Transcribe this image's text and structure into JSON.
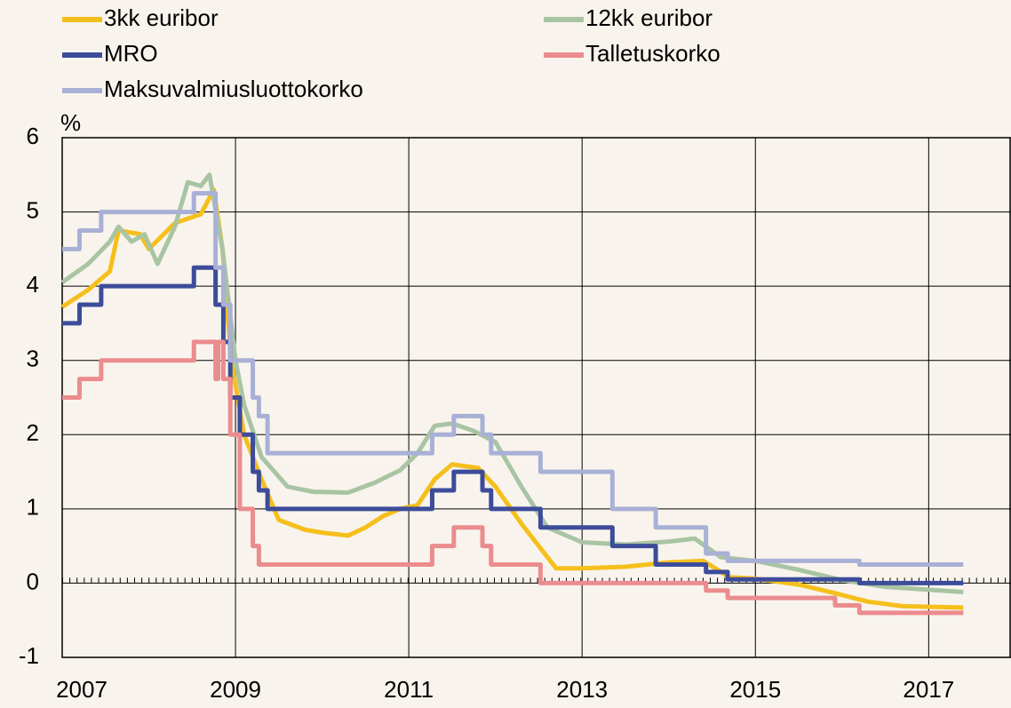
{
  "chart_data": {
    "type": "line",
    "y_label": "%",
    "xlim": [
      2007,
      2017.95
    ],
    "xticks": [
      2007,
      2009,
      2011,
      2013,
      2015,
      2017
    ],
    "ylim": [
      -1,
      6
    ],
    "yticks": [
      -1,
      0,
      1,
      2,
      3,
      4,
      5,
      6
    ],
    "grid": true,
    "series": [
      {
        "name": "3kk euribor",
        "color": "#f5bf1c",
        "step": false,
        "x": [
          2007.0,
          2007.3,
          2007.55,
          2007.65,
          2007.9,
          2008.0,
          2008.3,
          2008.6,
          2008.75,
          2008.85,
          2008.95,
          2009.1,
          2009.3,
          2009.5,
          2009.8,
          2010.0,
          2010.3,
          2010.5,
          2010.7,
          2010.9,
          2011.1,
          2011.3,
          2011.5,
          2011.8,
          2012.0,
          2012.3,
          2012.5,
          2012.7,
          2013.0,
          2013.5,
          2014.0,
          2014.4,
          2014.7,
          2015.0,
          2015.5,
          2015.9,
          2016.3,
          2016.7,
          2017.4
        ],
        "values": [
          3.72,
          3.95,
          4.2,
          4.75,
          4.7,
          4.5,
          4.85,
          4.97,
          5.3,
          4.5,
          3.0,
          2.0,
          1.4,
          0.85,
          0.72,
          0.68,
          0.64,
          0.75,
          0.9,
          1.0,
          1.05,
          1.4,
          1.6,
          1.55,
          1.3,
          0.8,
          0.5,
          0.2,
          0.2,
          0.22,
          0.28,
          0.3,
          0.08,
          0.06,
          -0.02,
          -0.13,
          -0.25,
          -0.31,
          -0.33
        ]
      },
      {
        "name": "12kk euribor",
        "color": "#a9c4a3",
        "step": false,
        "x": [
          2007.0,
          2007.3,
          2007.55,
          2007.65,
          2007.8,
          2007.95,
          2008.1,
          2008.3,
          2008.45,
          2008.6,
          2008.7,
          2008.85,
          2009.0,
          2009.1,
          2009.3,
          2009.6,
          2009.9,
          2010.3,
          2010.6,
          2010.9,
          2011.1,
          2011.3,
          2011.5,
          2011.75,
          2012.0,
          2012.3,
          2012.6,
          2013.0,
          2013.5,
          2014.0,
          2014.3,
          2014.6,
          2015.0,
          2015.5,
          2016.0,
          2016.5,
          2017.4
        ],
        "values": [
          4.05,
          4.3,
          4.6,
          4.8,
          4.6,
          4.7,
          4.3,
          4.8,
          5.4,
          5.35,
          5.5,
          4.5,
          3.0,
          2.4,
          1.7,
          1.3,
          1.23,
          1.22,
          1.35,
          1.52,
          1.75,
          2.12,
          2.15,
          2.05,
          1.9,
          1.3,
          0.75,
          0.55,
          0.52,
          0.56,
          0.6,
          0.35,
          0.3,
          0.18,
          0.04,
          -0.05,
          -0.12
        ]
      },
      {
        "name": "MRO",
        "color": "#3d4c9a",
        "step": true,
        "x": [
          2007.0,
          2007.2,
          2007.45,
          2008.52,
          2008.77,
          2008.86,
          2008.94,
          2009.05,
          2009.2,
          2009.27,
          2009.37,
          2011.27,
          2011.52,
          2011.85,
          2011.95,
          2012.52,
          2013.35,
          2013.85,
          2014.43,
          2014.68,
          2016.2,
          2017.4
        ],
        "values": [
          3.5,
          3.75,
          4.0,
          4.25,
          3.75,
          3.25,
          2.5,
          2.0,
          1.5,
          1.25,
          1.0,
          1.25,
          1.5,
          1.25,
          1.0,
          0.75,
          0.5,
          0.25,
          0.15,
          0.05,
          0.0,
          0.0
        ]
      },
      {
        "name": "Talletuskorko",
        "color": "#eb8c8e",
        "step": true,
        "x": [
          2007.0,
          2007.2,
          2007.45,
          2008.52,
          2008.77,
          2008.8,
          2008.86,
          2008.94,
          2009.05,
          2009.2,
          2009.27,
          2011.27,
          2011.52,
          2011.85,
          2011.95,
          2012.52,
          2014.43,
          2014.68,
          2015.92,
          2016.2,
          2017.4
        ],
        "values": [
          2.5,
          2.75,
          3.0,
          3.25,
          2.75,
          3.25,
          2.75,
          2.0,
          1.0,
          0.5,
          0.25,
          0.5,
          0.75,
          0.5,
          0.25,
          0.0,
          -0.1,
          -0.2,
          -0.3,
          -0.4,
          -0.4
        ]
      },
      {
        "name": "Maksuvalmiusluottokorko",
        "color": "#a9b0d6",
        "step": true,
        "x": [
          2007.0,
          2007.2,
          2007.45,
          2008.52,
          2008.77,
          2008.86,
          2008.94,
          2009.2,
          2009.27,
          2009.37,
          2011.27,
          2011.52,
          2011.85,
          2011.95,
          2012.52,
          2013.35,
          2013.85,
          2014.43,
          2014.68,
          2016.2,
          2017.4
        ],
        "values": [
          4.5,
          4.75,
          5.0,
          5.25,
          4.25,
          3.75,
          3.0,
          2.5,
          2.25,
          1.75,
          2.0,
          2.25,
          2.0,
          1.75,
          1.5,
          1.0,
          0.75,
          0.4,
          0.3,
          0.25,
          0.25
        ]
      }
    ]
  }
}
